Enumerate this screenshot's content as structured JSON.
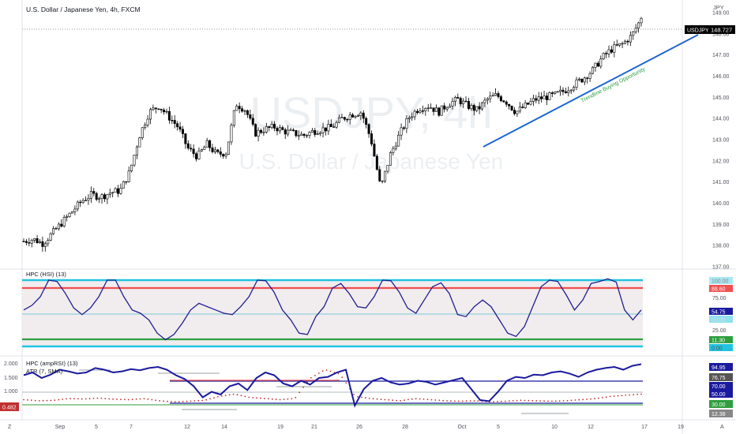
{
  "header": {
    "symbol_title": "U.S. Dollar / Japanese Yen, 4h, FXCM",
    "currency": "JPY"
  },
  "watermark": {
    "symbol": "USDJPY, 4h",
    "name": "U.S. Dollar / Japanese Yen"
  },
  "price_tags": {
    "symbol": "USDJPY",
    "last_price": "148.727"
  },
  "annotation": "Trendline Buying Opportunity",
  "colors": {
    "bull": "#ffffff",
    "bear": "#000000",
    "trendline": "#1e66d4",
    "hsi_line": "#1f1f8f",
    "cyan": "#22c3e0",
    "red": "#f05050",
    "green": "#2e9e3e",
    "rsi_line": "#1a1a9e",
    "atr": "#c03030",
    "label_hsi_value": "#1a1a9e",
    "label_red": "#f05050",
    "label_green": "#2e9e3e",
    "label_cyan": "#22c3e0"
  },
  "axis": {
    "price_ticks": [
      "149.00",
      "148.00",
      "147.00",
      "146.00",
      "145.00",
      "144.00",
      "143.00",
      "142.00",
      "141.00",
      "140.00",
      "139.00",
      "138.00",
      "137.00"
    ],
    "date_ticks": [
      "Sep",
      "5",
      "7",
      "12",
      "14",
      "19",
      "21",
      "26",
      "28",
      "Oct",
      "5",
      "10",
      "12",
      "17",
      "19"
    ],
    "corner_left": "Z",
    "corner_right": "A"
  },
  "pane2": {
    "title": "HPC (HSI) (13)",
    "ticks": [
      "75.00",
      "25.00"
    ],
    "labels": [
      "100.00",
      "88.60",
      "54.75",
      "50.00",
      "11.30",
      "0.00"
    ]
  },
  "pane3": {
    "title": "HPC (ampRSI) (13)",
    "subtitle": "ATR (7, SMA)",
    "left_ticks": [
      "2.000",
      "1.500",
      "1.000"
    ],
    "left_badge": "0.482",
    "labels": [
      "94.95",
      "76.75",
      "70.00",
      "50.00",
      "30.00",
      "12.38"
    ]
  },
  "chart_data": {
    "type": "candlestick",
    "title": "U.S. Dollar / Japanese Yen, 4h, FXCM",
    "ylim": [
      137,
      149.5
    ],
    "price_path": [
      138.2,
      138.3,
      138.1,
      138.6,
      139.1,
      139.6,
      140.1,
      140.4,
      140.3,
      140.5,
      140.6,
      141.5,
      143.2,
      144.3,
      144.6,
      144.1,
      143.6,
      142.6,
      142.2,
      142.8,
      142.3,
      142.4,
      144.7,
      144.4,
      143.3,
      143.5,
      143.6,
      143.4,
      143.3,
      143.2,
      143.4,
      143.5,
      143.6,
      144.0,
      144.2,
      144.3,
      143.0,
      140.7,
      142.3,
      143.3,
      144.1,
      144.5,
      144.6,
      144.3,
      144.7,
      144.9,
      144.6,
      144.4,
      144.9,
      145.1,
      144.8,
      144.3,
      144.6,
      144.9,
      145.0,
      145.1,
      145.3,
      145.6,
      145.9,
      146.3,
      146.9,
      147.3,
      147.5,
      147.9,
      148.73
    ],
    "last": 148.727,
    "trendline": {
      "from": {
        "x": "Oct 4",
        "y": 142.8
      },
      "to": {
        "x": "Oct 17",
        "y": 148.7
      }
    },
    "hsi": {
      "ylim": [
        0,
        100
      ],
      "levels": [
        100,
        88.6,
        54.75,
        50,
        11.3,
        0
      ],
      "path": [
        55,
        62,
        75,
        100,
        98,
        80,
        58,
        48,
        58,
        75,
        100,
        100,
        75,
        55,
        50,
        40,
        20,
        10,
        18,
        35,
        55,
        65,
        60,
        55,
        50,
        48,
        60,
        75,
        100,
        99,
        82,
        55,
        40,
        20,
        18,
        45,
        60,
        88,
        95,
        80,
        60,
        58,
        75,
        100,
        99,
        82,
        58,
        50,
        70,
        90,
        96,
        80,
        48,
        45,
        60,
        70,
        60,
        40,
        20,
        15,
        30,
        60,
        90,
        100,
        98,
        78,
        55,
        70,
        95,
        98,
        102,
        97,
        55,
        40,
        55
      ]
    },
    "amprsi": {
      "ylim": [
        0,
        100
      ],
      "levels": [
        94.95,
        76.75,
        70,
        50,
        30,
        12.38
      ],
      "path": [
        75,
        80,
        70,
        76,
        85,
        82,
        78,
        80,
        88,
        85,
        80,
        82,
        86,
        84,
        88,
        90,
        85,
        75,
        68,
        55,
        35,
        45,
        40,
        55,
        60,
        48,
        70,
        80,
        75,
        60,
        55,
        65,
        58,
        70,
        72,
        80,
        85,
        20,
        50,
        65,
        70,
        62,
        58,
        60,
        65,
        63,
        58,
        62,
        66,
        70,
        50,
        30,
        28,
        45,
        65,
        72,
        70,
        76,
        75,
        80,
        82,
        78,
        72,
        80,
        85,
        88,
        90,
        85,
        92,
        94.95
      ],
      "atr_line": [
        0.55,
        0.5,
        0.52,
        0.6,
        0.58,
        0.62,
        0.57,
        0.55,
        0.6,
        0.5,
        0.45,
        0.48,
        0.52,
        0.7,
        0.8,
        0.65,
        0.6,
        0.55,
        0.6,
        1.5,
        1.9,
        1.7,
        0.7,
        0.6,
        0.55,
        0.5,
        0.6,
        0.55,
        0.5,
        0.48,
        0.5,
        0.45,
        0.48,
        0.52,
        0.5,
        0.48,
        0.5,
        0.55,
        0.6,
        0.7,
        0.75,
        0.8
      ]
    }
  }
}
